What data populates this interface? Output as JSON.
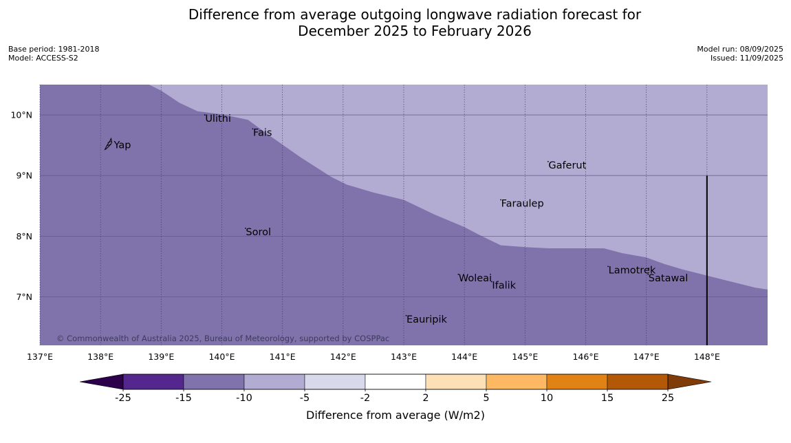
{
  "title_line1": "Difference from average outgoing longwave radiation forecast for",
  "title_line2": "December 2025 to February 2026",
  "meta": {
    "base_period": "Base period: 1981-2018",
    "model": "Model: ACCESS-S2",
    "model_run": "Model run: 08/09/2025",
    "issued": "Issued: 11/09/2025"
  },
  "copyright": "© Commonwealth of Australia 2025, Bureau of Meteorology, supported by COSPPac",
  "colorbar": {
    "label": "Difference from average (W/m2)",
    "ticks": [
      "-25",
      "-15",
      "-10",
      "-5",
      "-2",
      "2",
      "5",
      "10",
      "15",
      "25"
    ],
    "colors": [
      "#54278f",
      "#8073ac",
      "#b2abd2",
      "#d8daeb",
      "#ffffff",
      "#fee0b6",
      "#fdb863",
      "#e08214",
      "#b35806"
    ],
    "under_color": "#2d004b",
    "over_color": "#7f3b08"
  },
  "map": {
    "lon_range": [
      137,
      149
    ],
    "lat_range": [
      6.2,
      10.5
    ],
    "lon_ticks": [
      137,
      138,
      139,
      140,
      141,
      142,
      143,
      144,
      145,
      146,
      147,
      148
    ],
    "lon_tick_labels": [
      "137°E",
      "138°E",
      "139°E",
      "140°E",
      "141°E",
      "142°E",
      "143°E",
      "144°E",
      "145°E",
      "146°E",
      "147°E",
      "148°E"
    ],
    "lat_ticks": [
      7,
      8,
      9,
      10
    ],
    "lat_tick_labels": [
      "7°N",
      "8°N",
      "9°N",
      "10°N"
    ],
    "colors": {
      "region_low": "#8073ac",
      "region_high": "#b2abd2"
    },
    "boundary": [
      [
        137.0,
        10.5
      ],
      [
        138.8,
        10.5
      ],
      [
        139.0,
        10.4
      ],
      [
        139.3,
        10.2
      ],
      [
        139.6,
        10.06
      ],
      [
        140.0,
        10.01
      ],
      [
        140.43,
        9.92
      ],
      [
        140.8,
        9.65
      ],
      [
        141.3,
        9.3
      ],
      [
        141.8,
        8.98
      ],
      [
        142.06,
        8.85
      ],
      [
        142.5,
        8.72
      ],
      [
        143.0,
        8.6
      ],
      [
        143.5,
        8.36
      ],
      [
        144.0,
        8.15
      ],
      [
        144.25,
        8.02
      ],
      [
        144.6,
        7.85
      ],
      [
        145.0,
        7.82
      ],
      [
        145.4,
        7.8
      ],
      [
        146.0,
        7.8
      ],
      [
        146.3,
        7.8
      ],
      [
        146.6,
        7.72
      ],
      [
        147.0,
        7.65
      ],
      [
        147.3,
        7.54
      ],
      [
        147.6,
        7.45
      ],
      [
        148.0,
        7.35
      ],
      [
        148.4,
        7.25
      ],
      [
        148.8,
        7.15
      ],
      [
        149.0,
        7.12
      ]
    ],
    "vertical_line": {
      "lon": 148.0,
      "lat_from": 6.2,
      "lat_to": 9.0
    },
    "places": [
      {
        "name": "Yap",
        "lon": 138.14,
        "lat": 9.52
      },
      {
        "name": "Ulithi",
        "lon": 139.72,
        "lat": 10.0
      },
      {
        "name": "Fais",
        "lon": 140.51,
        "lat": 9.77
      },
      {
        "name": "Gaferut",
        "lon": 145.38,
        "lat": 9.23
      },
      {
        "name": "Faraulep",
        "lon": 144.6,
        "lat": 8.6
      },
      {
        "name": "Sorol",
        "lon": 140.39,
        "lat": 8.13
      },
      {
        "name": "Woleai",
        "lon": 143.9,
        "lat": 7.37
      },
      {
        "name": "Ifalik",
        "lon": 144.45,
        "lat": 7.25
      },
      {
        "name": "Lamotrek",
        "lon": 146.37,
        "lat": 7.5
      },
      {
        "name": "Satawal",
        "lon": 147.03,
        "lat": 7.37
      },
      {
        "name": "Eauripik",
        "lon": 143.04,
        "lat": 6.69
      }
    ]
  }
}
